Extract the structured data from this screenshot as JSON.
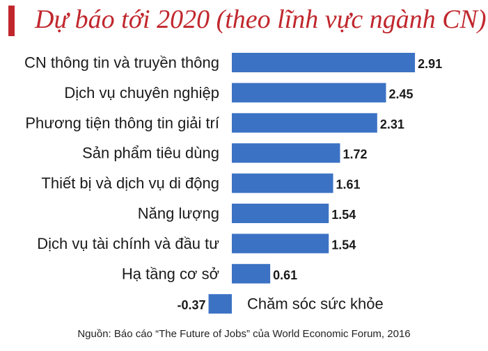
{
  "title": "Dự báo tới 2020 (theo lĩnh vực ngành CN)",
  "source": "Nguồn: Báo cáo “The Future of Jobs” của World Economic Forum, 2016",
  "colors": {
    "accent": "#c0272d",
    "bar": "#3b72c4",
    "text": "#1a1a1a"
  },
  "chart_data": {
    "type": "bar",
    "orientation": "horizontal",
    "categories": [
      "CN thông tin và truyền thông",
      "Dịch vụ chuyên nghiệp",
      "Phương tiện thông tin giải trí",
      "Sản phẩm tiêu dùng",
      "Thiết bị và dịch vụ di động",
      "Năng lượng",
      "Dịch vụ tài chính và đầu tư",
      "Hạ tầng cơ sở",
      "Chăm sóc sức khỏe"
    ],
    "values": [
      2.91,
      2.45,
      2.31,
      1.72,
      1.61,
      1.54,
      1.54,
      0.61,
      -0.37
    ],
    "data_labels": [
      "2.91",
      "2.45",
      "2.31",
      "1.72",
      "1.61",
      "1.54",
      "1.54",
      "0.61",
      "-0.37"
    ],
    "xlabel": "",
    "ylabel": "",
    "grid": false
  }
}
